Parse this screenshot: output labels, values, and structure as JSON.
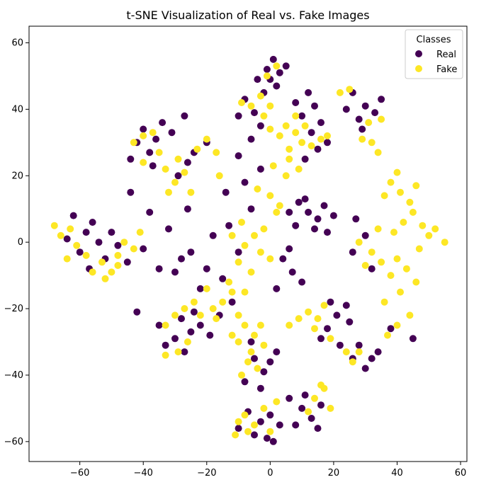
{
  "chart_data": {
    "type": "scatter",
    "title": "t-SNE Visualization of Real vs. Fake Images",
    "xlabel": "",
    "ylabel": "",
    "xlim": [
      -76,
      62
    ],
    "ylim": [
      -66,
      65
    ],
    "x_ticks": [
      -60,
      -40,
      -20,
      0,
      20,
      40,
      60
    ],
    "y_ticks": [
      -60,
      -40,
      -20,
      0,
      20,
      40,
      60
    ],
    "grid": false,
    "legend": {
      "title": "Classes",
      "placement": "top-right"
    },
    "series": [
      {
        "name": "Real",
        "color": "#440154",
        "points": [
          [
            -1,
            52
          ],
          [
            1,
            55
          ],
          [
            3,
            51
          ],
          [
            -4,
            49
          ],
          [
            2,
            47
          ],
          [
            5,
            53
          ],
          [
            -2,
            45
          ],
          [
            0,
            49
          ],
          [
            -8,
            43
          ],
          [
            -5,
            39
          ],
          [
            -3,
            35
          ],
          [
            -10,
            38
          ],
          [
            -6,
            31
          ],
          [
            12,
            45
          ],
          [
            14,
            41
          ],
          [
            10,
            38
          ],
          [
            16,
            36
          ],
          [
            13,
            33
          ],
          [
            18,
            30
          ],
          [
            8,
            42
          ],
          [
            15,
            28
          ],
          [
            11,
            25
          ],
          [
            26,
            45
          ],
          [
            30,
            41
          ],
          [
            33,
            39
          ],
          [
            28,
            37
          ],
          [
            35,
            43
          ],
          [
            29,
            34
          ],
          [
            24,
            40
          ],
          [
            -40,
            34
          ],
          [
            -36,
            31
          ],
          [
            -38,
            27
          ],
          [
            -42,
            30
          ],
          [
            -34,
            36
          ],
          [
            -31,
            33
          ],
          [
            -27,
            38
          ],
          [
            -37,
            23
          ],
          [
            -44,
            25
          ],
          [
            -24,
            27
          ],
          [
            -20,
            30
          ],
          [
            -26,
            24
          ],
          [
            -29,
            20
          ],
          [
            -62,
            8
          ],
          [
            -58,
            3
          ],
          [
            -64,
            1
          ],
          [
            -60,
            -3
          ],
          [
            -56,
            6
          ],
          [
            -54,
            0
          ],
          [
            -52,
            -5
          ],
          [
            -48,
            -1
          ],
          [
            -50,
            3
          ],
          [
            -45,
            -6
          ],
          [
            -40,
            -2
          ],
          [
            -57,
            -8
          ],
          [
            9,
            12
          ],
          [
            12,
            9
          ],
          [
            15,
            7
          ],
          [
            8,
            5
          ],
          [
            17,
            11
          ],
          [
            14,
            4
          ],
          [
            20,
            8
          ],
          [
            11,
            13
          ],
          [
            6,
            9
          ],
          [
            18,
            3
          ],
          [
            -28,
            -23
          ],
          [
            -25,
            -27
          ],
          [
            -30,
            -29
          ],
          [
            -22,
            -25
          ],
          [
            -33,
            -31
          ],
          [
            -27,
            -33
          ],
          [
            -24,
            -21
          ],
          [
            -35,
            -25
          ],
          [
            -19,
            -28
          ],
          [
            -15,
            -11
          ],
          [
            -20,
            -8
          ],
          [
            -25,
            -3
          ],
          [
            -18,
            2
          ],
          [
            -22,
            -14
          ],
          [
            -12,
            -18
          ],
          [
            -28,
            -5
          ],
          [
            -16,
            -22
          ],
          [
            -32,
            4
          ],
          [
            -26,
            10
          ],
          [
            -10,
            -3
          ],
          [
            -6,
            10
          ],
          [
            -13,
            5
          ],
          [
            -8,
            18
          ],
          [
            -3,
            22
          ],
          [
            -10,
            26
          ],
          [
            -5,
            -35
          ],
          [
            -2,
            -39
          ],
          [
            -8,
            -42
          ],
          [
            -3,
            -44
          ],
          [
            0,
            -36
          ],
          [
            -6,
            -30
          ],
          [
            2,
            -33
          ],
          [
            -7,
            -51
          ],
          [
            -3,
            -54
          ],
          [
            -10,
            -56
          ],
          [
            -5,
            -58
          ],
          [
            0,
            -52
          ],
          [
            3,
            -55
          ],
          [
            -1,
            -59
          ],
          [
            1,
            -60
          ],
          [
            10,
            -50
          ],
          [
            13,
            -53
          ],
          [
            8,
            -55
          ],
          [
            16,
            -49
          ],
          [
            11,
            -46
          ],
          [
            15,
            -56
          ],
          [
            6,
            -47
          ],
          [
            21,
            -22
          ],
          [
            18,
            -26
          ],
          [
            25,
            -24
          ],
          [
            22,
            -31
          ],
          [
            19,
            -18
          ],
          [
            16,
            -29
          ],
          [
            24,
            -19
          ],
          [
            28,
            -31
          ],
          [
            32,
            -35
          ],
          [
            30,
            -38
          ],
          [
            26,
            -35
          ],
          [
            34,
            -33
          ],
          [
            7,
            -9
          ],
          [
            4,
            -5
          ],
          [
            10,
            -12
          ],
          [
            2,
            -14
          ],
          [
            6,
            -2
          ],
          [
            45,
            -29
          ],
          [
            38,
            -26
          ],
          [
            27,
            7
          ],
          [
            26,
            -3
          ],
          [
            32,
            -8
          ],
          [
            30,
            2
          ],
          [
            -38,
            9
          ],
          [
            -44,
            15
          ],
          [
            -35,
            -8
          ],
          [
            -42,
            -21
          ],
          [
            -30,
            -9
          ],
          [
            -14,
            15
          ]
        ]
      },
      {
        "name": "Fake",
        "color": "#fde725",
        "points": [
          [
            -3,
            44
          ],
          [
            -6,
            41
          ],
          [
            -9,
            42
          ],
          [
            -2,
            38
          ],
          [
            0,
            41
          ],
          [
            2,
            53
          ],
          [
            -1,
            50
          ],
          [
            5,
            35
          ],
          [
            8,
            33
          ],
          [
            10,
            30
          ],
          [
            13,
            29
          ],
          [
            16,
            31
          ],
          [
            6,
            28
          ],
          [
            3,
            32
          ],
          [
            11,
            35
          ],
          [
            18,
            32
          ],
          [
            0,
            34
          ],
          [
            8,
            38
          ],
          [
            22,
            45
          ],
          [
            25,
            46
          ],
          [
            31,
            36
          ],
          [
            29,
            31
          ],
          [
            34,
            27
          ],
          [
            32,
            30
          ],
          [
            35,
            37
          ],
          [
            -40,
            32
          ],
          [
            -37,
            33
          ],
          [
            -43,
            30
          ],
          [
            -35,
            27
          ],
          [
            -33,
            22
          ],
          [
            -30,
            18
          ],
          [
            -27,
            21
          ],
          [
            -32,
            15
          ],
          [
            -25,
            15
          ],
          [
            -29,
            25
          ],
          [
            -20,
            31
          ],
          [
            -17,
            27
          ],
          [
            -23,
            28
          ],
          [
            -68,
            5
          ],
          [
            -66,
            2
          ],
          [
            -63,
            4
          ],
          [
            -61,
            -1
          ],
          [
            -64,
            -5
          ],
          [
            -58,
            -4
          ],
          [
            -56,
            -9
          ],
          [
            -53,
            -6
          ],
          [
            -50,
            -9
          ],
          [
            -46,
            0
          ],
          [
            -43,
            -2
          ],
          [
            -41,
            3
          ],
          [
            -48,
            -4
          ],
          [
            38,
            18
          ],
          [
            41,
            15
          ],
          [
            44,
            12
          ],
          [
            40,
            21
          ],
          [
            46,
            17
          ],
          [
            36,
            14
          ],
          [
            42,
            6
          ],
          [
            45,
            9
          ],
          [
            48,
            5
          ],
          [
            50,
            2
          ],
          [
            47,
            -2
          ],
          [
            52,
            4
          ],
          [
            55,
            0
          ],
          [
            39,
            3
          ],
          [
            40,
            -5
          ],
          [
            43,
            -8
          ],
          [
            38,
            -10
          ],
          [
            46,
            -12
          ],
          [
            41,
            -15
          ],
          [
            36,
            -18
          ],
          [
            44,
            -22
          ],
          [
            40,
            -25
          ],
          [
            37,
            -28
          ],
          [
            32,
            -3
          ],
          [
            35,
            -6
          ],
          [
            30,
            -7
          ],
          [
            28,
            0
          ],
          [
            34,
            4
          ],
          [
            -8,
            -1
          ],
          [
            -5,
            2
          ],
          [
            -3,
            -3
          ],
          [
            -10,
            -6
          ],
          [
            -6,
            -9
          ],
          [
            -2,
            4
          ],
          [
            -12,
            2
          ],
          [
            0,
            -5
          ],
          [
            -9,
            6
          ],
          [
            -12,
            -15
          ],
          [
            -15,
            -18
          ],
          [
            -18,
            -20
          ],
          [
            -10,
            -22
          ],
          [
            -13,
            -12
          ],
          [
            -20,
            -14
          ],
          [
            -8,
            -15
          ],
          [
            -17,
            -23
          ],
          [
            -8,
            -25
          ],
          [
            -5,
            -28
          ],
          [
            -3,
            -25
          ],
          [
            -10,
            -30
          ],
          [
            -6,
            -33
          ],
          [
            -2,
            -31
          ],
          [
            -12,
            -28
          ],
          [
            -7,
            -36
          ],
          [
            -4,
            -38
          ],
          [
            -9,
            -40
          ],
          [
            -30,
            -22
          ],
          [
            -27,
            -20
          ],
          [
            -33,
            -25
          ],
          [
            -24,
            -18
          ],
          [
            -29,
            -33
          ],
          [
            -33,
            -34
          ],
          [
            -26,
            -30
          ],
          [
            -22,
            -22
          ],
          [
            12,
            -21
          ],
          [
            15,
            -23
          ],
          [
            17,
            -19
          ],
          [
            14,
            -26
          ],
          [
            19,
            -29
          ],
          [
            24,
            -33
          ],
          [
            26,
            -36
          ],
          [
            28,
            -33
          ],
          [
            9,
            -23
          ],
          [
            6,
            -25
          ],
          [
            14,
            -47
          ],
          [
            17,
            -44
          ],
          [
            19,
            -50
          ],
          [
            12,
            -51
          ],
          [
            16,
            -43
          ],
          [
            -8,
            -52
          ],
          [
            -5,
            -55
          ],
          [
            -2,
            -50
          ],
          [
            -10,
            -54
          ],
          [
            0,
            -57
          ],
          [
            2,
            -48
          ],
          [
            -11,
            -58
          ],
          [
            -7,
            -57
          ],
          [
            3,
            11
          ],
          [
            0,
            14
          ],
          [
            2,
            9
          ],
          [
            5,
            20
          ],
          [
            1,
            23
          ],
          [
            -4,
            16
          ],
          [
            6,
            25
          ],
          [
            9,
            22
          ],
          [
            -48,
            -7
          ],
          [
            -52,
            -11
          ],
          [
            -16,
            20
          ],
          [
            -40,
            24
          ]
        ]
      }
    ]
  }
}
